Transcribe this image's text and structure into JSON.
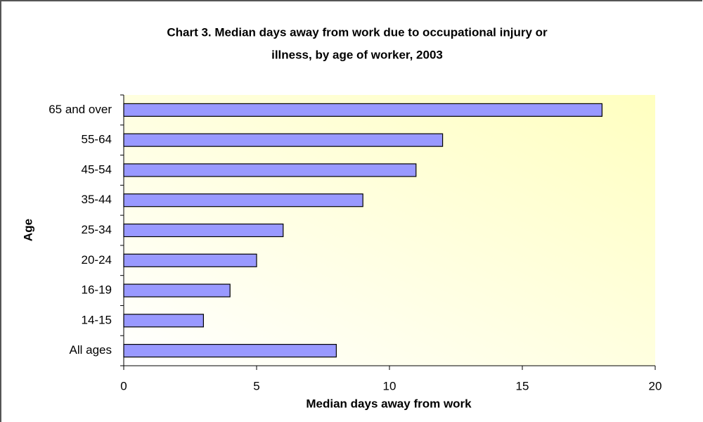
{
  "chart_data": {
    "type": "bar",
    "orientation": "horizontal",
    "title": [
      "Chart 3. Median days away from work due to occupational injury or",
      "illness, by age of worker, 2003"
    ],
    "x_label": "Median days away from work",
    "y_label": "Age",
    "categories": [
      "65 and over",
      "55-64",
      "45-54",
      "35-44",
      "25-34",
      "20-24",
      "16-19",
      "14-15",
      "All ages"
    ],
    "values": [
      18,
      12,
      11,
      9,
      6,
      5,
      4,
      3,
      8
    ],
    "color": "#9999ff",
    "xlim": [
      0,
      20
    ],
    "xticks": [
      0,
      5,
      10,
      15,
      20
    ],
    "grid": false
  }
}
